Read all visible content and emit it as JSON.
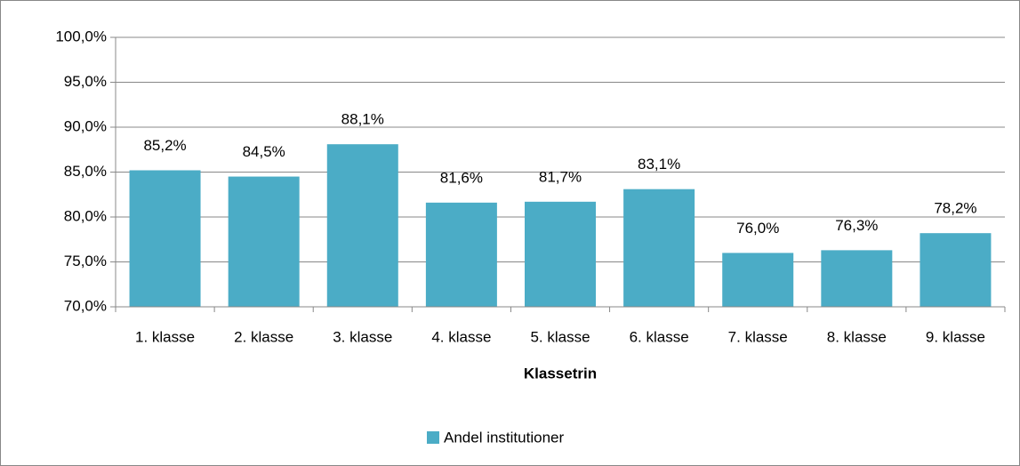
{
  "chart_data": {
    "type": "bar",
    "categories": [
      "1. klasse",
      "2. klasse",
      "3. klasse",
      "4. klasse",
      "5. klasse",
      "6. klasse",
      "7. klasse",
      "8. klasse",
      "9. klasse"
    ],
    "series": [
      {
        "name": "Andel institutioner",
        "color": "#4bacc6",
        "values": [
          85.2,
          84.5,
          88.1,
          81.6,
          81.7,
          83.1,
          76.0,
          76.3,
          78.2
        ],
        "value_labels": [
          "85,2%",
          "84,5%",
          "88,1%",
          "81,6%",
          "81,7%",
          "83,1%",
          "76,0%",
          "76,3%",
          "78,2%"
        ]
      }
    ],
    "x_label": "Klassetrin",
    "ylim": [
      70,
      100
    ],
    "yticks": [
      {
        "value": 70,
        "label": "70,0%"
      },
      {
        "value": 75,
        "label": "75,0%"
      },
      {
        "value": 80,
        "label": "80,0%"
      },
      {
        "value": 85,
        "label": "85,0%"
      },
      {
        "value": 90,
        "label": "90,0%"
      },
      {
        "value": 95,
        "label": "95,0%"
      },
      {
        "value": 100,
        "label": "100,0%"
      }
    ],
    "grid": true,
    "legend": "bottom"
  }
}
